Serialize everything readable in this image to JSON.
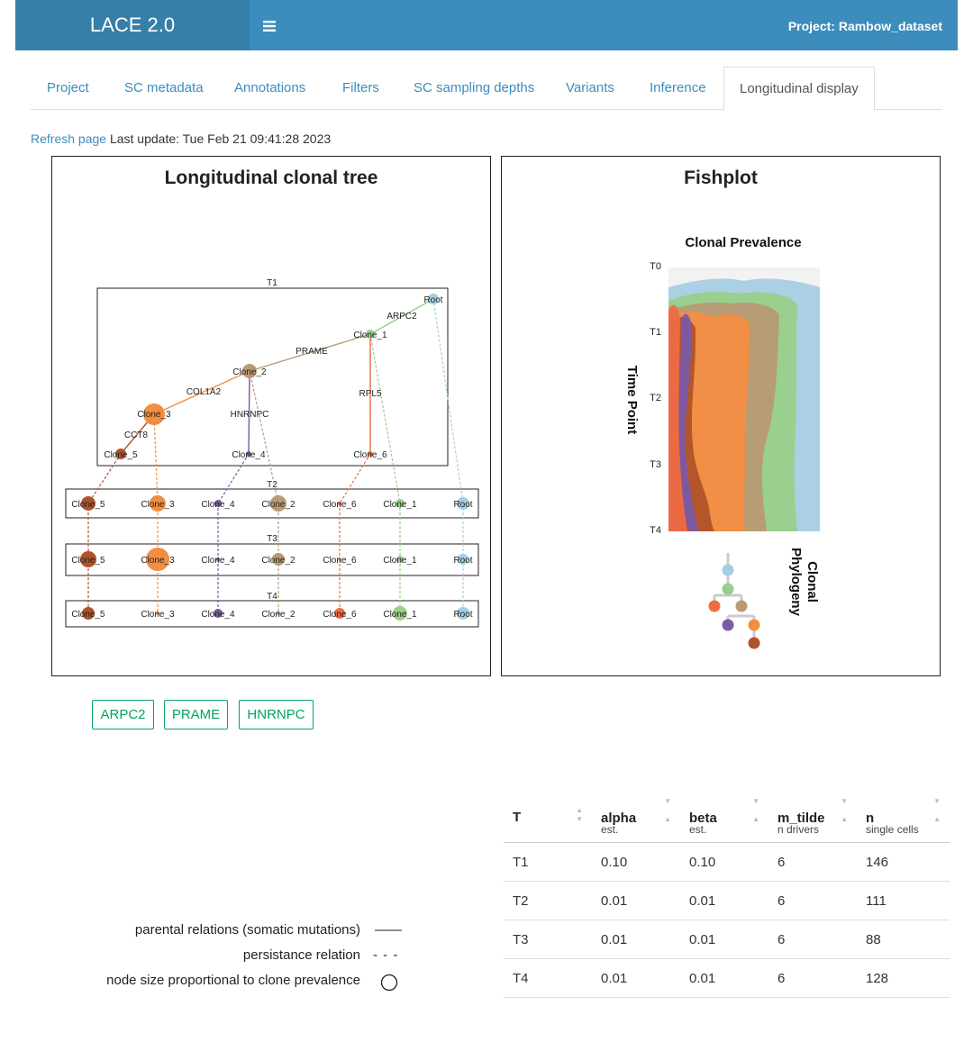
{
  "app": {
    "logo": "LACE 2.0",
    "menu_icon": "hamburger-icon",
    "project_title": "Project: Rambow_dataset"
  },
  "tabs": [
    {
      "label": "Project"
    },
    {
      "label": "SC metadata"
    },
    {
      "label": "Annotations"
    },
    {
      "label": "Filters"
    },
    {
      "label": "SC sampling depths"
    },
    {
      "label": "Variants"
    },
    {
      "label": "Inference"
    },
    {
      "label": "Longitudinal display",
      "active": true
    }
  ],
  "refresh": {
    "link": "Refresh page",
    "text": "Last update: Tue Feb 21 09:41:28 2023"
  },
  "tree_panel": {
    "title": "Longitudinal clonal tree",
    "timepoints": [
      "T1",
      "T2",
      "T3",
      "T4"
    ],
    "mutations": [
      "ARPC2",
      "PRAME",
      "COL1A2",
      "CCT8",
      "HNRNPC",
      "RPL5"
    ],
    "nodes": {
      "root": "Root",
      "c1": "Clone_1",
      "c2": "Clone_2",
      "c3": "Clone_3",
      "c4": "Clone_4",
      "c5": "Clone_5",
      "c6": "Clone_6"
    }
  },
  "fish_panel": {
    "title": "Fishplot",
    "subtitle": "Clonal Prevalence",
    "y_axis_label": "Time Point",
    "y_ticks": [
      "T0",
      "T1",
      "T2",
      "T3",
      "T4"
    ],
    "phylogeny_label_1": "Clonal",
    "phylogeny_label_2": "Phylogeny"
  },
  "colors": {
    "root": "#a6cee3",
    "clone_1": "#98cf8a",
    "clone_2": "#b89a74",
    "clone_3": "#f28e42",
    "clone_4": "#7c5aa6",
    "clone_5": "#b0532a",
    "clone_6": "#ee6c45"
  },
  "gene_buttons": [
    {
      "label": "ARPC2"
    },
    {
      "label": "PRAME"
    },
    {
      "label": "HNRNPC"
    }
  ],
  "legend": [
    {
      "label": "parental relations (somatic mutations)",
      "symbol": "——"
    },
    {
      "label": "persistance relation",
      "symbol": "- - -"
    },
    {
      "label": "node size proportional to clone prevalence",
      "symbol": "circle-icon"
    }
  ],
  "table": {
    "columns": [
      {
        "main": "T",
        "sub": ""
      },
      {
        "main": "alpha",
        "sub": "est."
      },
      {
        "main": "beta",
        "sub": "est."
      },
      {
        "main": "m_tilde",
        "sub": "n drivers"
      },
      {
        "main": "n",
        "sub": "single cells"
      }
    ],
    "rows": [
      [
        "T1",
        "0.10",
        "0.10",
        "6",
        "146"
      ],
      [
        "T2",
        "0.01",
        "0.01",
        "6",
        "111"
      ],
      [
        "T3",
        "0.01",
        "0.01",
        "6",
        "88"
      ],
      [
        "T4",
        "0.01",
        "0.01",
        "6",
        "128"
      ]
    ]
  }
}
